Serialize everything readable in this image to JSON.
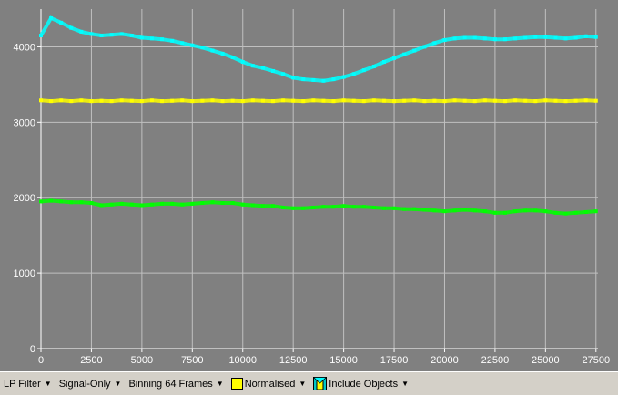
{
  "chart_data": {
    "type": "scatter",
    "title": "",
    "xlabel": "",
    "ylabel": "",
    "xlim": [
      0,
      27600
    ],
    "ylim": [
      0,
      4500
    ],
    "x_ticks": [
      "0",
      "2500",
      "5000",
      "7500",
      "10000",
      "12500",
      "15000",
      "17500",
      "20000",
      "22500",
      "25000",
      "27500"
    ],
    "y_ticks": [
      "0",
      "1000",
      "2000",
      "3000",
      "4000"
    ],
    "x_tick_values": [
      0,
      2500,
      5000,
      7500,
      10000,
      12500,
      15000,
      17500,
      20000,
      22500,
      25000,
      27500
    ],
    "y_tick_values": [
      0,
      1000,
      2000,
      3000,
      4000
    ],
    "grid": true,
    "background": "#808080",
    "series": [
      {
        "color": "#00ffff",
        "x": [
          0,
          500,
          1000,
          1500,
          2000,
          2500,
          3000,
          3500,
          4000,
          4500,
          5000,
          5500,
          6000,
          6500,
          7000,
          7500,
          8000,
          8500,
          9000,
          9500,
          10000,
          10500,
          11000,
          11500,
          12000,
          12500,
          13000,
          13500,
          14000,
          14500,
          15000,
          15500,
          16000,
          16500,
          17000,
          17500,
          18000,
          18500,
          19000,
          19500,
          20000,
          20500,
          21000,
          21500,
          22000,
          22500,
          23000,
          23500,
          24000,
          24500,
          25000,
          25500,
          26000,
          26500,
          27000,
          27500
        ],
        "y": [
          4150,
          4380,
          4320,
          4250,
          4200,
          4170,
          4150,
          4160,
          4170,
          4150,
          4120,
          4110,
          4100,
          4080,
          4050,
          4020,
          3990,
          3950,
          3910,
          3860,
          3800,
          3750,
          3720,
          3680,
          3640,
          3590,
          3570,
          3560,
          3550,
          3570,
          3600,
          3640,
          3690,
          3740,
          3800,
          3850,
          3900,
          3950,
          4000,
          4050,
          4090,
          4110,
          4120,
          4120,
          4110,
          4100,
          4100,
          4110,
          4120,
          4130,
          4130,
          4120,
          4110,
          4120,
          4140,
          4130
        ]
      },
      {
        "color": "#ffff00",
        "x": [
          0,
          500,
          1000,
          1500,
          2000,
          2500,
          3000,
          3500,
          4000,
          4500,
          5000,
          5500,
          6000,
          6500,
          7000,
          7500,
          8000,
          8500,
          9000,
          9500,
          10000,
          10500,
          11000,
          11500,
          12000,
          12500,
          13000,
          13500,
          14000,
          14500,
          15000,
          15500,
          16000,
          16500,
          17000,
          17500,
          18000,
          18500,
          19000,
          19500,
          20000,
          20500,
          21000,
          21500,
          22000,
          22500,
          23000,
          23500,
          24000,
          24500,
          25000,
          25500,
          26000,
          26500,
          27000,
          27500
        ],
        "y": [
          3290,
          3280,
          3290,
          3280,
          3290,
          3280,
          3285,
          3280,
          3290,
          3285,
          3280,
          3290,
          3280,
          3285,
          3290,
          3280,
          3285,
          3290,
          3280,
          3285,
          3280,
          3290,
          3285,
          3280,
          3290,
          3285,
          3280,
          3290,
          3285,
          3280,
          3290,
          3285,
          3280,
          3290,
          3285,
          3280,
          3285,
          3290,
          3280,
          3285,
          3280,
          3290,
          3285,
          3280,
          3290,
          3285,
          3280,
          3290,
          3285,
          3280,
          3290,
          3285,
          3280,
          3285,
          3290,
          3285
        ]
      },
      {
        "color": "#00ff00",
        "x": [
          0,
          500,
          1000,
          1500,
          2000,
          2500,
          3000,
          3500,
          4000,
          4500,
          5000,
          5500,
          6000,
          6500,
          7000,
          7500,
          8000,
          8500,
          9000,
          9500,
          10000,
          10500,
          11000,
          11500,
          12000,
          12500,
          13000,
          13500,
          14000,
          14500,
          15000,
          15500,
          16000,
          16500,
          17000,
          17500,
          18000,
          18500,
          19000,
          19500,
          20000,
          20500,
          21000,
          21500,
          22000,
          22500,
          23000,
          23500,
          24000,
          24500,
          25000,
          25500,
          26000,
          26500,
          27000,
          27500
        ],
        "y": [
          1950,
          1960,
          1950,
          1940,
          1940,
          1930,
          1900,
          1910,
          1920,
          1910,
          1900,
          1910,
          1920,
          1920,
          1910,
          1920,
          1930,
          1940,
          1930,
          1930,
          1910,
          1900,
          1890,
          1890,
          1870,
          1860,
          1860,
          1870,
          1880,
          1880,
          1890,
          1880,
          1880,
          1870,
          1860,
          1860,
          1850,
          1850,
          1840,
          1830,
          1820,
          1830,
          1840,
          1830,
          1820,
          1800,
          1800,
          1820,
          1830,
          1830,
          1820,
          1800,
          1790,
          1800,
          1810,
          1820
        ]
      }
    ]
  },
  "toolbar": {
    "lp_filter": "LP Filter",
    "signal_only": "Signal-Only",
    "binning": "Binning 64 Frames",
    "normalised": "Normalised",
    "include_objects": "Include Objects",
    "arrow": "▼",
    "normalised_color": "#ffff00",
    "include_objects_icon": "objects-icon"
  }
}
